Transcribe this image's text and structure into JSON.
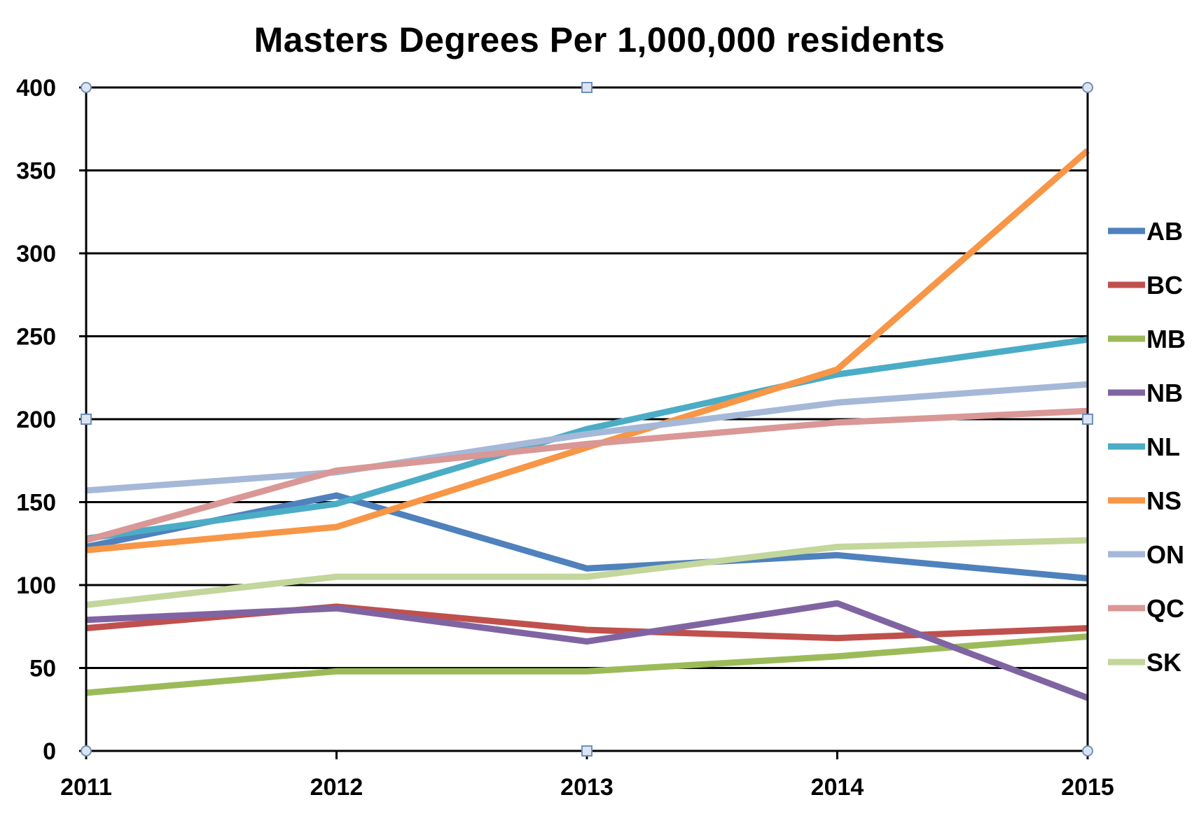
{
  "chart_data": {
    "type": "line",
    "title": "Masters Degrees Per 1,000,000 residents",
    "xlabel": "",
    "ylabel": "",
    "categories": [
      "2011",
      "2012",
      "2013",
      "2014",
      "2015"
    ],
    "ylim": [
      0,
      400
    ],
    "yticks": [
      "0",
      "50",
      "100",
      "150",
      "200",
      "250",
      "300",
      "350",
      "400"
    ],
    "grid": true,
    "legend_position": "right",
    "series": [
      {
        "name": "AB",
        "color": "#4f81bd",
        "values": [
          123,
          154,
          110,
          118,
          104
        ]
      },
      {
        "name": "BC",
        "color": "#c0504d",
        "values": [
          74,
          87,
          73,
          68,
          74
        ]
      },
      {
        "name": "MB",
        "color": "#9bbb59",
        "values": [
          35,
          48,
          48,
          57,
          69
        ]
      },
      {
        "name": "NB",
        "color": "#8064a2",
        "values": [
          79,
          86,
          66,
          89,
          32
        ]
      },
      {
        "name": "NL",
        "color": "#4bacc6",
        "values": [
          128,
          149,
          194,
          227,
          248
        ]
      },
      {
        "name": "NS",
        "color": "#f79646",
        "values": [
          121,
          135,
          183,
          230,
          362
        ]
      },
      {
        "name": "ON",
        "color": "#a5b8d8",
        "values": [
          157,
          168,
          191,
          210,
          221
        ]
      },
      {
        "name": "QC",
        "color": "#d99795",
        "values": [
          127,
          169,
          185,
          198,
          205
        ]
      },
      {
        "name": "SK",
        "color": "#c3d69b",
        "values": [
          88,
          105,
          105,
          123,
          127
        ]
      }
    ]
  }
}
